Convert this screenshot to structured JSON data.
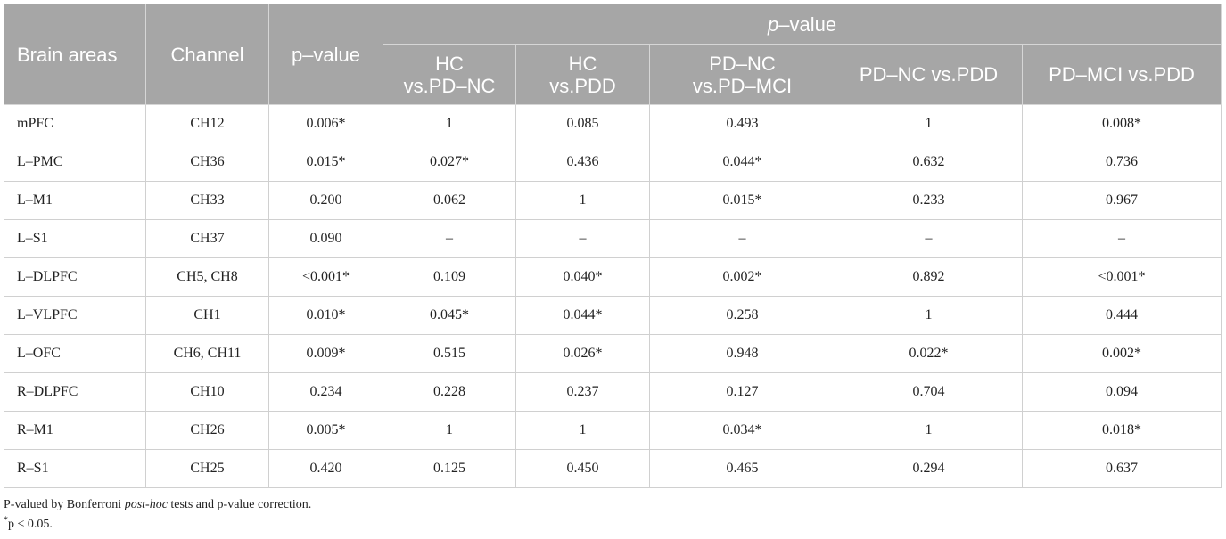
{
  "table": {
    "headers": {
      "brain_areas": "Brain areas",
      "channel": "Channel",
      "p_value": "p–value",
      "group_p": "p",
      "group_rest": "–value",
      "comparisons": [
        {
          "line1": "HC",
          "line2": "vs.PD–NC"
        },
        {
          "line1": "HC",
          "line2": "vs.PDD"
        },
        {
          "line1": "PD–NC",
          "line2": "vs.PD–MCI"
        },
        {
          "line1": "PD–NC vs.PDD",
          "line2": ""
        },
        {
          "line1": "PD–MCI vs.PDD",
          "line2": ""
        }
      ]
    },
    "rows": [
      {
        "area": "mPFC",
        "channel": "CH12",
        "p": "0.006*",
        "c1": "1",
        "c2": "0.085",
        "c3": "0.493",
        "c4": "1",
        "c5": "0.008*"
      },
      {
        "area": "L–PMC",
        "channel": "CH36",
        "p": "0.015*",
        "c1": "0.027*",
        "c2": "0.436",
        "c3": "0.044*",
        "c4": "0.632",
        "c5": "0.736"
      },
      {
        "area": "L–M1",
        "channel": "CH33",
        "p": "0.200",
        "c1": "0.062",
        "c2": "1",
        "c3": "0.015*",
        "c4": "0.233",
        "c5": "0.967"
      },
      {
        "area": "L–S1",
        "channel": "CH37",
        "p": "0.090",
        "c1": "–",
        "c2": "–",
        "c3": "–",
        "c4": "–",
        "c5": "–"
      },
      {
        "area": "L–DLPFC",
        "channel": "CH5, CH8",
        "p": "<0.001*",
        "c1": "0.109",
        "c2": "0.040*",
        "c3": "0.002*",
        "c4": "0.892",
        "c5": "<0.001*"
      },
      {
        "area": "L–VLPFC",
        "channel": "CH1",
        "p": "0.010*",
        "c1": "0.045*",
        "c2": "0.044*",
        "c3": "0.258",
        "c4": "1",
        "c5": "0.444"
      },
      {
        "area": "L–OFC",
        "channel": "CH6, CH11",
        "p": "0.009*",
        "c1": "0.515",
        "c2": "0.026*",
        "c3": "0.948",
        "c4": "0.022*",
        "c5": "0.002*"
      },
      {
        "area": "R–DLPFC",
        "channel": "CH10",
        "p": "0.234",
        "c1": "0.228",
        "c2": "0.237",
        "c3": "0.127",
        "c4": "0.704",
        "c5": "0.094"
      },
      {
        "area": "R–M1",
        "channel": "CH26",
        "p": "0.005*",
        "c1": "1",
        "c2": "1",
        "c3": "0.034*",
        "c4": "1",
        "c5": "0.018*"
      },
      {
        "area": "R–S1",
        "channel": "CH25",
        "p": "0.420",
        "c1": "0.125",
        "c2": "0.450",
        "c3": "0.465",
        "c4": "0.294",
        "c5": "0.637"
      }
    ]
  },
  "footnotes": {
    "line1_pre": "P-valued by Bonferroni ",
    "line1_italic": "post-hoc",
    "line1_post": " tests and p-value correction.",
    "line2_mark": "*",
    "line2_text": "p < 0.05."
  }
}
